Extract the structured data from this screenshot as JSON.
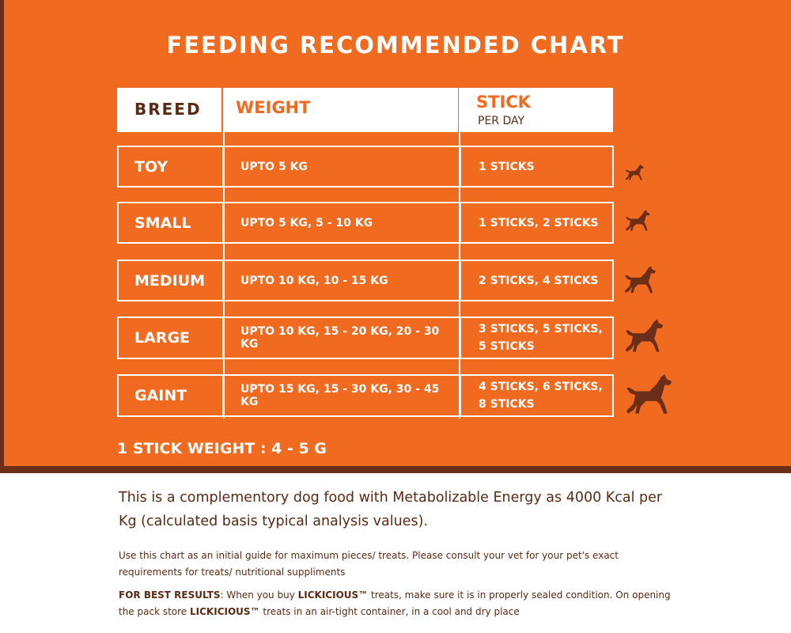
{
  "title": "FEEDING RECOMMENDED CHART",
  "header": {
    "breed": "BREED",
    "weight": "WEIGHT",
    "stick": "STICK",
    "stick_sub": "PER DAY"
  },
  "rows": [
    {
      "breed": "TOY",
      "weight": "UPTO 5 KG",
      "sticks_line1": "1 STICKS",
      "sticks_line2": ""
    },
    {
      "breed": "SMALL",
      "weight": "UPTO 5 KG, 5 - 10 KG",
      "sticks_line1": "1 STICKS, 2 STICKS",
      "sticks_line2": ""
    },
    {
      "breed": "MEDIUM",
      "weight": "UPTO 10 KG, 10 - 15 KG",
      "sticks_line1": "2 STICKS, 4 STICKS",
      "sticks_line2": ""
    },
    {
      "breed": "LARGE",
      "weight": "UPTO 10 KG, 15 - 20 KG, 20 - 30 KG",
      "sticks_line1": "3 STICKS, 5 STICKS,",
      "sticks_line2": "5 STICKS"
    },
    {
      "breed": "GAINT",
      "weight": "UPTO 15 KG, 15 - 30 KG, 30 - 45 KG",
      "sticks_line1": "4 STICKS, 6 STICKS,",
      "sticks_line2": "8 STICKS"
    }
  ],
  "stick_weight": "1 STICK WEIGHT : 4 - 5 G",
  "intro": "This is a complementory dog food with Metabolizable Energy as 4000 Kcal per Kg (calculated basis typical analysis values).",
  "guide": "Use this chart as an initial guide for maximum pieces/ treats. Please consult your vet for your pet's exact requirements for treats/ nutritional suppliments",
  "best": {
    "label": "FOR BEST RESULTS",
    "part1": ": When you buy ",
    "brand1": "LICKICIOUS™",
    "part2": " treats, make sure it is in properly sealed condition. On opening the pack store ",
    "brand2": "LICKICIOUS™",
    "part3": " treats in an air-tight container, in a cool and dry place"
  },
  "colors": {
    "orange": "#f06a1f",
    "brown": "#6b2e18",
    "white": "#ffffff"
  },
  "icons": [
    "dog-silhouette-icon"
  ]
}
